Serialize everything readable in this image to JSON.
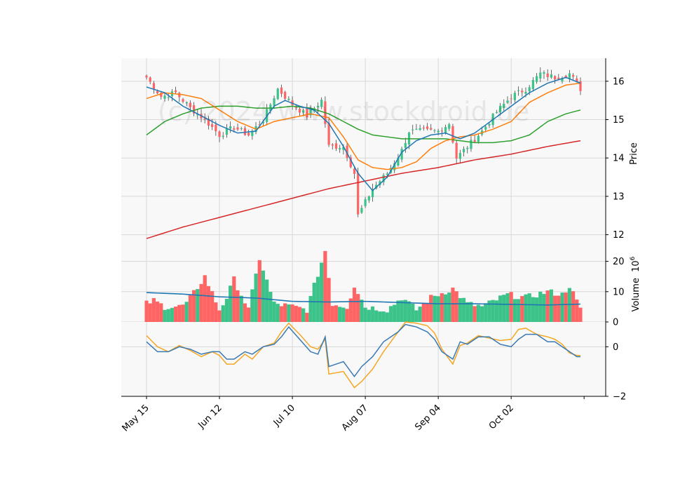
{
  "chart_data": {
    "type": "candlestick",
    "watermark": "(c) 2024 www.stockdroid.de",
    "x_ticks": [
      "May 15",
      "Jun 12",
      "Jul 10",
      "Aug 07",
      "Sep 04",
      "Oct 02"
    ],
    "x_tick_indices": [
      0,
      20,
      40,
      60,
      80,
      100
    ],
    "n_bars": 120,
    "colors": {
      "up": "#3cc38a",
      "down": "#ff6464",
      "sma_fast": "#1f77b4",
      "sma_mid": "#ff7f0e",
      "sma_slow": "#2ca02c",
      "sma_long": "#d62728",
      "osc1": "#3a7ab3",
      "osc2": "#f5a623",
      "panel_bg": "#f8f8f8",
      "grid": "#d8d8d8"
    },
    "price_panel": {
      "ylabel": "Price",
      "ylim": [
        11.7,
        16.6
      ],
      "yticks": [
        12,
        13,
        14,
        15,
        16
      ],
      "anchors": [
        [
          0,
          16.1
        ],
        [
          4,
          15.6
        ],
        [
          8,
          15.7
        ],
        [
          12,
          15.3
        ],
        [
          16,
          15.0
        ],
        [
          20,
          14.6
        ],
        [
          24,
          14.8
        ],
        [
          28,
          14.6
        ],
        [
          32,
          15.0
        ],
        [
          36,
          15.8
        ],
        [
          40,
          15.4
        ],
        [
          44,
          15.1
        ],
        [
          48,
          15.5
        ],
        [
          50,
          14.3
        ],
        [
          54,
          14.3
        ],
        [
          57,
          13.6
        ],
        [
          58,
          12.5
        ],
        [
          62,
          13.2
        ],
        [
          66,
          13.6
        ],
        [
          70,
          14.2
        ],
        [
          72,
          14.7
        ],
        [
          76,
          14.7
        ],
        [
          80,
          14.7
        ],
        [
          83,
          14.9
        ],
        [
          85,
          14.0
        ],
        [
          88,
          14.3
        ],
        [
          92,
          14.7
        ],
        [
          96,
          15.2
        ],
        [
          100,
          15.6
        ],
        [
          104,
          15.8
        ],
        [
          108,
          16.2
        ],
        [
          112,
          16.1
        ],
        [
          116,
          16.2
        ],
        [
          119,
          15.8
        ]
      ],
      "sma_fast": [
        [
          0,
          15.85
        ],
        [
          5,
          15.7
        ],
        [
          10,
          15.35
        ],
        [
          15,
          15.1
        ],
        [
          20,
          14.85
        ],
        [
          25,
          14.65
        ],
        [
          30,
          14.7
        ],
        [
          35,
          15.35
        ],
        [
          38,
          15.5
        ],
        [
          42,
          15.35
        ],
        [
          46,
          15.25
        ],
        [
          50,
          14.9
        ],
        [
          54,
          14.3
        ],
        [
          58,
          13.6
        ],
        [
          62,
          13.15
        ],
        [
          66,
          13.5
        ],
        [
          70,
          14.15
        ],
        [
          74,
          14.45
        ],
        [
          78,
          14.6
        ],
        [
          82,
          14.65
        ],
        [
          86,
          14.5
        ],
        [
          90,
          14.65
        ],
        [
          95,
          15.0
        ],
        [
          100,
          15.35
        ],
        [
          105,
          15.7
        ],
        [
          110,
          15.95
        ],
        [
          115,
          16.1
        ],
        [
          119,
          15.95
        ]
      ],
      "sma_mid": [
        [
          0,
          15.55
        ],
        [
          5,
          15.7
        ],
        [
          10,
          15.65
        ],
        [
          15,
          15.55
        ],
        [
          20,
          15.25
        ],
        [
          25,
          14.95
        ],
        [
          30,
          14.75
        ],
        [
          35,
          14.95
        ],
        [
          40,
          15.05
        ],
        [
          45,
          15.15
        ],
        [
          50,
          15.05
        ],
        [
          54,
          14.55
        ],
        [
          58,
          13.95
        ],
        [
          62,
          13.75
        ],
        [
          66,
          13.7
        ],
        [
          70,
          13.75
        ],
        [
          74,
          13.9
        ],
        [
          78,
          14.25
        ],
        [
          82,
          14.45
        ],
        [
          86,
          14.55
        ],
        [
          90,
          14.6
        ],
        [
          95,
          14.75
        ],
        [
          100,
          14.95
        ],
        [
          105,
          15.45
        ],
        [
          110,
          15.7
        ],
        [
          115,
          15.9
        ],
        [
          119,
          15.95
        ]
      ],
      "sma_slow": [
        [
          0,
          14.6
        ],
        [
          5,
          14.95
        ],
        [
          10,
          15.15
        ],
        [
          15,
          15.3
        ],
        [
          20,
          15.35
        ],
        [
          25,
          15.35
        ],
        [
          30,
          15.3
        ],
        [
          35,
          15.3
        ],
        [
          40,
          15.35
        ],
        [
          45,
          15.3
        ],
        [
          50,
          15.15
        ],
        [
          54,
          14.95
        ],
        [
          58,
          14.75
        ],
        [
          62,
          14.6
        ],
        [
          66,
          14.55
        ],
        [
          70,
          14.5
        ],
        [
          74,
          14.5
        ],
        [
          78,
          14.5
        ],
        [
          82,
          14.5
        ],
        [
          86,
          14.45
        ],
        [
          90,
          14.4
        ],
        [
          95,
          14.4
        ],
        [
          100,
          14.45
        ],
        [
          105,
          14.6
        ],
        [
          110,
          14.95
        ],
        [
          115,
          15.15
        ],
        [
          119,
          15.25
        ]
      ],
      "sma_long": [
        [
          0,
          11.9
        ],
        [
          10,
          12.2
        ],
        [
          20,
          12.45
        ],
        [
          30,
          12.7
        ],
        [
          40,
          12.95
        ],
        [
          50,
          13.2
        ],
        [
          60,
          13.4
        ],
        [
          70,
          13.6
        ],
        [
          80,
          13.75
        ],
        [
          90,
          13.95
        ],
        [
          100,
          14.1
        ],
        [
          110,
          14.3
        ],
        [
          119,
          14.45
        ]
      ]
    },
    "volume_panel": {
      "ylabel": "Volume",
      "unit_exponent": "10^6",
      "ylim": [
        0,
        25
      ],
      "yticks": [
        0,
        10,
        20
      ],
      "anchors": [
        [
          0,
          6
        ],
        [
          2,
          7
        ],
        [
          5,
          5
        ],
        [
          9,
          5
        ],
        [
          11,
          6
        ],
        [
          16,
          15
        ],
        [
          20,
          4
        ],
        [
          22,
          8
        ],
        [
          24,
          14
        ],
        [
          28,
          4
        ],
        [
          31,
          21
        ],
        [
          35,
          6
        ],
        [
          40,
          5
        ],
        [
          44,
          4
        ],
        [
          49,
          23.5
        ],
        [
          51,
          6
        ],
        [
          55,
          5
        ],
        [
          57,
          12
        ],
        [
          60,
          5
        ],
        [
          66,
          4
        ],
        [
          70,
          8
        ],
        [
          74,
          4
        ],
        [
          78,
          8
        ],
        [
          84,
          11
        ],
        [
          88,
          6
        ],
        [
          92,
          5
        ],
        [
          99,
          9
        ],
        [
          104,
          8
        ],
        [
          110,
          10
        ],
        [
          114,
          9
        ],
        [
          116,
          12
        ],
        [
          119,
          4
        ]
      ],
      "ma": [
        [
          0,
          9.7
        ],
        [
          10,
          9.2
        ],
        [
          20,
          8.3
        ],
        [
          30,
          7.9
        ],
        [
          40,
          6.8
        ],
        [
          50,
          6.6
        ],
        [
          60,
          6.8
        ],
        [
          70,
          6.4
        ],
        [
          80,
          6.0
        ],
        [
          90,
          6.0
        ],
        [
          100,
          5.8
        ],
        [
          110,
          5.6
        ],
        [
          119,
          5.9
        ]
      ]
    },
    "indicator_panel": {
      "ylim": [
        -2.0,
        1.0
      ],
      "yticks": [
        -2,
        0
      ],
      "line1": [
        [
          0,
          0.2
        ],
        [
          3,
          -0.2
        ],
        [
          6,
          -0.2
        ],
        [
          9,
          0.0
        ],
        [
          12,
          -0.1
        ],
        [
          15,
          -0.3
        ],
        [
          18,
          -0.2
        ],
        [
          20,
          -0.2
        ],
        [
          22,
          -0.5
        ],
        [
          24,
          -0.5
        ],
        [
          27,
          -0.2
        ],
        [
          29,
          -0.3
        ],
        [
          32,
          0.0
        ],
        [
          35,
          0.1
        ],
        [
          37,
          0.4
        ],
        [
          39,
          0.8
        ],
        [
          42,
          0.3
        ],
        [
          45,
          -0.2
        ],
        [
          47,
          -0.3
        ],
        [
          49,
          0.4
        ],
        [
          50,
          -0.8
        ],
        [
          54,
          -0.6
        ],
        [
          57,
          -1.2
        ],
        [
          59,
          -0.8
        ],
        [
          62,
          -0.4
        ],
        [
          65,
          0.2
        ],
        [
          67,
          0.4
        ],
        [
          69,
          0.6
        ],
        [
          71,
          0.9
        ],
        [
          74,
          0.8
        ],
        [
          77,
          0.6
        ],
        [
          79,
          0.3
        ],
        [
          81,
          -0.2
        ],
        [
          84,
          -0.5
        ],
        [
          86,
          0.2
        ],
        [
          88,
          0.1
        ],
        [
          91,
          0.4
        ],
        [
          94,
          0.4
        ],
        [
          97,
          0.1
        ],
        [
          100,
          0.0
        ],
        [
          102,
          0.3
        ],
        [
          104,
          0.5
        ],
        [
          107,
          0.5
        ],
        [
          110,
          0.2
        ],
        [
          112,
          0.2
        ],
        [
          114,
          0.0
        ],
        [
          116,
          -0.2
        ],
        [
          118,
          -0.4
        ]
      ],
      "line2": [
        [
          0,
          0.45
        ],
        [
          3,
          0.0
        ],
        [
          6,
          -0.2
        ],
        [
          9,
          0.05
        ],
        [
          12,
          -0.15
        ],
        [
          15,
          -0.4
        ],
        [
          18,
          -0.2
        ],
        [
          20,
          -0.35
        ],
        [
          22,
          -0.7
        ],
        [
          24,
          -0.7
        ],
        [
          27,
          -0.3
        ],
        [
          29,
          -0.5
        ],
        [
          32,
          0.0
        ],
        [
          35,
          0.15
        ],
        [
          37,
          0.6
        ],
        [
          39,
          0.95
        ],
        [
          42,
          0.5
        ],
        [
          45,
          0.0
        ],
        [
          47,
          -0.1
        ],
        [
          49,
          0.3
        ],
        [
          50,
          -1.1
        ],
        [
          54,
          -1.0
        ],
        [
          57,
          -1.65
        ],
        [
          59,
          -1.4
        ],
        [
          62,
          -0.9
        ],
        [
          65,
          -0.2
        ],
        [
          67,
          0.2
        ],
        [
          69,
          0.6
        ],
        [
          71,
          1.0
        ],
        [
          74,
          0.95
        ],
        [
          77,
          0.85
        ],
        [
          79,
          0.55
        ],
        [
          81,
          -0.1
        ],
        [
          84,
          -0.7
        ],
        [
          86,
          0.05
        ],
        [
          88,
          0.15
        ],
        [
          91,
          0.45
        ],
        [
          94,
          0.35
        ],
        [
          97,
          0.25
        ],
        [
          100,
          0.3
        ],
        [
          102,
          0.7
        ],
        [
          104,
          0.75
        ],
        [
          107,
          0.5
        ],
        [
          110,
          0.4
        ],
        [
          112,
          0.3
        ],
        [
          114,
          0.1
        ],
        [
          116,
          -0.25
        ],
        [
          118,
          -0.35
        ]
      ]
    }
  }
}
